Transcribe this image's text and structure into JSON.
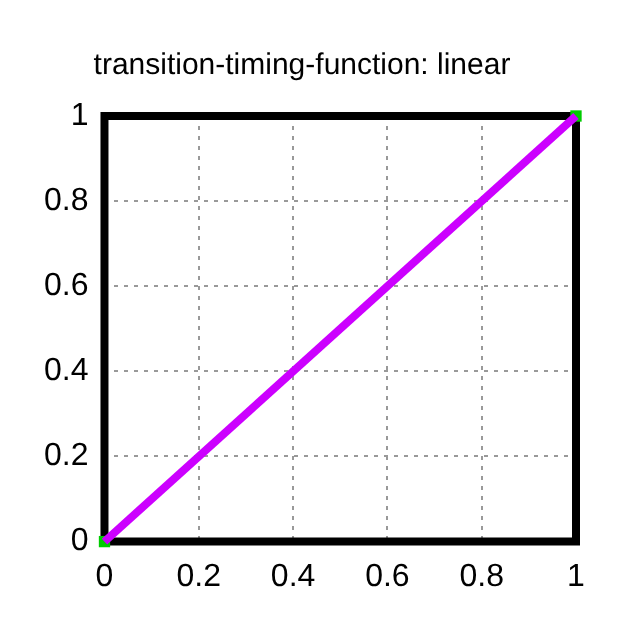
{
  "chart_data": {
    "type": "line",
    "title": "transition-timing-function: linear",
    "x": [
      0,
      1
    ],
    "xlim": [
      0,
      1
    ],
    "ylim": [
      0,
      1
    ],
    "xticks": [
      0,
      {
        "value": 0.2,
        "label": "0.2"
      },
      {
        "value": 0.4,
        "label": "0.4"
      },
      {
        "value": 0.6,
        "label": "0.6"
      },
      {
        "value": 0.8,
        "label": "0.8"
      },
      1
    ],
    "yticks": [
      0,
      {
        "value": 0.2,
        "label": "0.2"
      },
      {
        "value": 0.4,
        "label": "0.4"
      },
      {
        "value": 0.6,
        "label": "0.6"
      },
      {
        "value": 0.8,
        "label": "0.8"
      },
      1
    ],
    "grid": true,
    "legend": false,
    "line_style": "solid",
    "series": [
      {
        "type": "line",
        "color": "#cc00ff",
        "values": [
          0,
          1
        ],
        "marker": "none"
      },
      {
        "type": "scatter",
        "color": "#00cc00",
        "values": [
          0,
          1
        ],
        "marker": "square"
      }
    ]
  }
}
